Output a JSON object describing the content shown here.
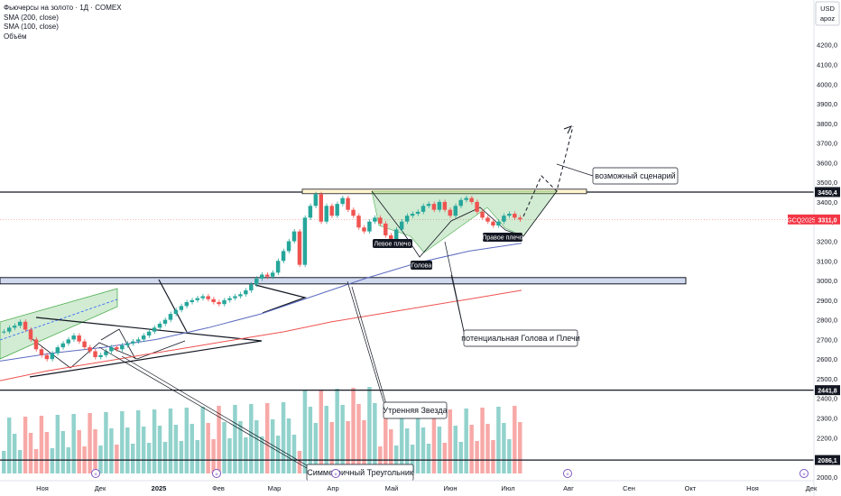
{
  "legend": {
    "title": "Фьючерсы на золото · 1Д · COMEX",
    "sma200": "SMA (200, close)",
    "sma100": "SMA (100, close)",
    "volume": "Объём"
  },
  "currency": "USD",
  "currency_sub": "арoz",
  "chart_data": {
    "type": "candlestick",
    "symbol": "GCQ2025",
    "y_axis": {
      "ylim": [
        1990,
        4330
      ],
      "ticks": [
        2000,
        2100,
        2200,
        2300,
        2400,
        2500,
        2600,
        2700,
        2800,
        2900,
        3000,
        3100,
        3200,
        3300,
        3400,
        3500,
        3600,
        3700,
        3800,
        3900,
        4000,
        4100,
        4200
      ],
      "tick_labels": [
        "2000,0",
        "2100,0",
        "2200,0",
        "2300,0",
        "2400,0",
        "2500,0",
        "2600,0",
        "2700,0",
        "2800,0",
        "2900,0",
        "3000,0",
        "3100,0",
        "3200,0",
        "3300,0",
        "3400,0",
        "3500,0",
        "3600,0",
        "3700,0",
        "3800,0",
        "3900,0",
        "4000,0",
        "4100,0",
        "4200,0"
      ]
    },
    "x_axis": {
      "ticks": [
        "Ноя",
        "Дек",
        "2025",
        "Фев",
        "Мар",
        "Апр",
        "Май",
        "Июн",
        "Июл",
        "Авг",
        "Сен",
        "Окт",
        "Ноя",
        "Дек"
      ]
    },
    "price_labels": [
      {
        "text": "3450,4",
        "value": 3450.4,
        "color": "#131722"
      },
      {
        "text": "3311,0",
        "value": 3311.0,
        "color": "#f23645",
        "prefix": "GCQ2025"
      },
      {
        "text": "2441,8",
        "value": 2441.8,
        "color": "#131722"
      },
      {
        "text": "2086,1",
        "value": 2086.1,
        "color": "#131722"
      }
    ],
    "horizontal_levels": [
      3450.4,
      2441.8,
      2086.1,
      3000
    ],
    "close_series": [
      2740,
      2760,
      2770,
      2790,
      2750,
      2700,
      2650,
      2620,
      2600,
      2630,
      2660,
      2680,
      2700,
      2720,
      2690,
      2660,
      2640,
      2610,
      2620,
      2640,
      2660,
      2650,
      2670,
      2680,
      2690,
      2700,
      2720,
      2740,
      2760,
      2780,
      2800,
      2830,
      2850,
      2870,
      2890,
      2900,
      2910,
      2920,
      2905,
      2890,
      2880,
      2900,
      2910,
      2920,
      2930,
      2950,
      2980,
      3010,
      3030,
      3020,
      3040,
      3100,
      3150,
      3200,
      3250,
      3080,
      3320,
      3380,
      3440,
      3300,
      3380,
      3330,
      3390,
      3420,
      3360,
      3330,
      3270,
      3250,
      3300,
      3320,
      3290,
      3230,
      3200,
      3260,
      3300,
      3330,
      3340,
      3350,
      3380,
      3390,
      3360,
      3400,
      3360,
      3330,
      3380,
      3410,
      3420,
      3400,
      3350,
      3320,
      3300,
      3280,
      3300,
      3330,
      3340,
      3320,
      3311
    ],
    "sma200_curve": [
      2490,
      2540,
      2580,
      2620,
      2660,
      2700,
      2740,
      2790,
      2830,
      2870,
      2910,
      2950
    ],
    "sma100_curve": [
      2590,
      2630,
      2660,
      2700,
      2760,
      2830,
      2920,
      3010,
      3090,
      3150,
      3190
    ],
    "annotations": [
      {
        "text": "возможный сценарий"
      },
      {
        "text": "потенциальная Голова и Плечи"
      },
      {
        "text": "Утренняя Звезда"
      },
      {
        "text": "Симметричный Треугольник"
      },
      {
        "text": "Левое плечо"
      },
      {
        "text": "Голова"
      },
      {
        "text": "Правое плечо"
      }
    ]
  }
}
